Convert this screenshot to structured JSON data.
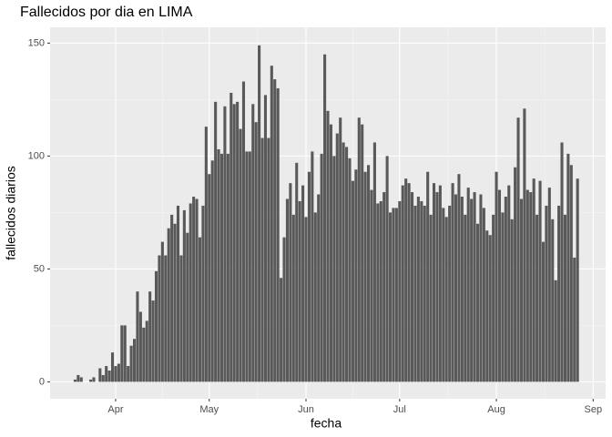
{
  "chart_data": {
    "type": "bar",
    "title": "Fallecidos por dia en LIMA",
    "x_label": "fecha",
    "y_label": "fallecidos diarios",
    "x": [
      18,
      19,
      20,
      21,
      22,
      23,
      24,
      25,
      26,
      27,
      28,
      29,
      30,
      31,
      32,
      33,
      34,
      35,
      36,
      37,
      38,
      39,
      40,
      41,
      42,
      43,
      44,
      45,
      46,
      47,
      48,
      49,
      50,
      51,
      52,
      53,
      54,
      55,
      56,
      57,
      58,
      59,
      60,
      61,
      62,
      63,
      64,
      65,
      66,
      67,
      68,
      69,
      70,
      71,
      72,
      73,
      74,
      75,
      76,
      77,
      78,
      79,
      80,
      81,
      82,
      83,
      84,
      85,
      86,
      87,
      88,
      89,
      90,
      91,
      92,
      93,
      94,
      95,
      96,
      97,
      98,
      99,
      100,
      101,
      102,
      103,
      104,
      105,
      106,
      107,
      108,
      109,
      110,
      111,
      112,
      113,
      114,
      115,
      116,
      117,
      118,
      119,
      120,
      121,
      122,
      123,
      124,
      125,
      126,
      127,
      128,
      129,
      130,
      131,
      132,
      133,
      134,
      135,
      136,
      137,
      138,
      139,
      140,
      141,
      142,
      143,
      144,
      145,
      146,
      147,
      148,
      149,
      150,
      151,
      152,
      153,
      154,
      155,
      156,
      157,
      158,
      159,
      160,
      161,
      162,
      163,
      164,
      165,
      166,
      167,
      168,
      169,
      170,
      171,
      172,
      173,
      174,
      175,
      176,
      177,
      178,
      179
    ],
    "values": [
      1,
      3,
      2,
      0,
      0,
      1,
      2,
      0,
      6,
      3,
      7,
      5,
      13,
      7,
      8,
      25,
      25,
      7,
      16,
      19,
      40,
      31,
      24,
      27,
      40,
      36,
      49,
      56,
      62,
      56,
      68,
      74,
      70,
      78,
      56,
      76,
      66,
      79,
      82,
      81,
      64,
      78,
      113,
      92,
      98,
      124,
      103,
      101,
      122,
      101,
      128,
      123,
      124,
      112,
      133,
      102,
      102,
      123,
      115,
      149,
      108,
      127,
      108,
      140,
      134,
      130,
      46,
      64,
      81,
      88,
      74,
      97,
      80,
      87,
      73,
      93,
      102,
      75,
      83,
      101,
      145,
      120,
      114,
      100,
      110,
      117,
      106,
      104,
      99,
      89,
      94,
      117,
      114,
      93,
      96,
      85,
      106,
      79,
      80,
      84,
      100,
      75,
      77,
      77,
      80,
      87,
      90,
      88,
      84,
      78,
      82,
      80,
      78,
      93,
      74,
      88,
      84,
      87,
      77,
      73,
      78,
      88,
      83,
      92,
      82,
      74,
      86,
      81,
      84,
      70,
      83,
      77,
      67,
      65,
      74,
      93,
      85,
      75,
      82,
      87,
      72,
      95,
      117,
      81,
      121,
      85,
      84,
      90,
      74,
      89,
      62,
      78,
      86,
      72,
      45,
      78,
      106,
      74,
      101,
      96,
      55,
      90
    ],
    "color": "#595959",
    "xlim": [
      10,
      188
    ],
    "xticks": [
      {
        "value": 31,
        "label": "Apr"
      },
      {
        "value": 61,
        "label": "May"
      },
      {
        "value": 92,
        "label": "Jun"
      },
      {
        "value": 122,
        "label": "Jul"
      },
      {
        "value": 153,
        "label": "Aug"
      },
      {
        "value": 184,
        "label": "Sep"
      }
    ],
    "ylim": [
      -7.5,
      157
    ],
    "yticks": [
      0,
      50,
      100,
      150
    ],
    "grid": true
  }
}
